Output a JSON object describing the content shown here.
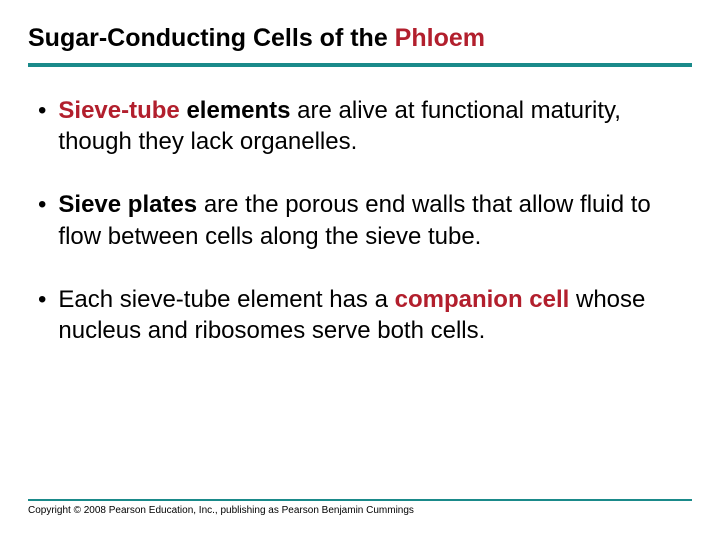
{
  "colors": {
    "accent": "#b21f2d",
    "rule": "#1a8a8a",
    "text": "#000000",
    "background": "#ffffff"
  },
  "title": {
    "prefix": "Sugar-Conducting Cells of the ",
    "accent_word": "Phloem"
  },
  "bullets": [
    {
      "parts": [
        {
          "text": "Sieve-tube",
          "style": "accent"
        },
        {
          "text": " elements",
          "style": "bold"
        },
        {
          "text": " are alive at functional maturity, though they lack organelles.",
          "style": "plain"
        }
      ]
    },
    {
      "parts": [
        {
          "text": "Sieve plates",
          "style": "bold"
        },
        {
          "text": " are the porous end walls that allow fluid to flow between cells along the sieve tube.",
          "style": "plain"
        }
      ]
    },
    {
      "parts": [
        {
          "text": "Each sieve-tube element has a ",
          "style": "plain"
        },
        {
          "text": "companion cell",
          "style": "accent"
        },
        {
          "text": " whose nucleus and ribosomes serve both cells.",
          "style": "plain"
        }
      ]
    }
  ],
  "footer": "Copyright © 2008 Pearson Education, Inc., publishing as Pearson Benjamin Cummings",
  "typography": {
    "title_fontsize": 25,
    "body_fontsize": 24,
    "footer_fontsize": 10,
    "title_weight": "bold"
  }
}
